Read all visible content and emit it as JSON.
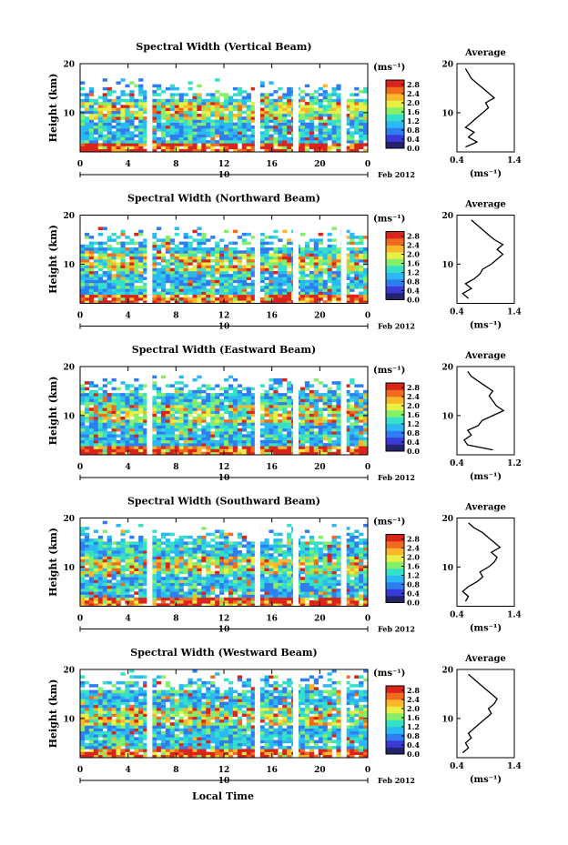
{
  "figure": {
    "date_label": "Feb 2012",
    "day_label": "10",
    "x_axis_title": "Local Time",
    "colorbar_unit": "(ms⁻¹)",
    "avg_title": "Average",
    "avg_unit": "(ms⁻¹)",
    "y_axis_title": "Height (km)",
    "colormap": [
      "#24246e",
      "#3a3ad6",
      "#2f7df0",
      "#2cb8f2",
      "#35e0c8",
      "#86ef6a",
      "#e6f046",
      "#f9b72c",
      "#f06a1f",
      "#d9241c"
    ]
  },
  "chart_data": [
    {
      "type": "heatmap",
      "title": "Spectral Width (Vertical Beam)",
      "xlabel": "Local Time",
      "ylabel": "Height (km)",
      "xlim": [
        0,
        24
      ],
      "ylim": [
        2,
        20
      ],
      "xticks": [
        "0",
        "4",
        "8",
        "12",
        "16",
        "20",
        "0"
      ],
      "yticks": [
        "10",
        "20"
      ],
      "colorbar": {
        "ticks": [
          "0.0",
          "0.4",
          "0.8",
          "1.2",
          "1.6",
          "2.0",
          "2.4",
          "2.8"
        ],
        "range": [
          0,
          3.0
        ]
      },
      "data_gaps_hours": [
        5.8,
        14.8,
        18.0,
        22.0
      ],
      "average": {
        "xlim": [
          0.4,
          1.4
        ],
        "xticks": [
          "0.4",
          "1.4"
        ],
        "heights": [
          3,
          4,
          5,
          6,
          7,
          8,
          9,
          10,
          11,
          12,
          13,
          14,
          15,
          16,
          17,
          18,
          19
        ],
        "values": [
          0.55,
          0.75,
          0.6,
          0.7,
          0.55,
          0.65,
          0.75,
          0.85,
          0.95,
          0.9,
          1.05,
          0.95,
          0.85,
          0.75,
          0.65,
          0.6,
          0.55
        ]
      }
    },
    {
      "type": "heatmap",
      "title": "Spectral Width (Northward Beam)",
      "xlabel": "Local Time",
      "ylabel": "Height (km)",
      "xlim": [
        0,
        24
      ],
      "ylim": [
        2,
        20
      ],
      "xticks": [
        "0",
        "4",
        "8",
        "12",
        "16",
        "20",
        "0"
      ],
      "yticks": [
        "10",
        "20"
      ],
      "colorbar": {
        "ticks": [
          "0.0",
          "0.4",
          "0.8",
          "1.2",
          "1.6",
          "2.0",
          "2.4",
          "2.8"
        ],
        "range": [
          0,
          3.0
        ]
      },
      "data_gaps_hours": [
        5.8,
        14.8,
        18.0,
        22.0
      ],
      "average": {
        "xlim": [
          0.4,
          1.4
        ],
        "xticks": [
          "0.4",
          "1.4"
        ],
        "heights": [
          3,
          4,
          5,
          6,
          7,
          8,
          9,
          10,
          11,
          12,
          13,
          14,
          15,
          16,
          17,
          18,
          19
        ],
        "values": [
          0.6,
          0.5,
          0.65,
          0.55,
          0.7,
          0.8,
          0.85,
          1.0,
          1.1,
          1.2,
          1.1,
          1.2,
          1.05,
          0.95,
          0.85,
          0.75,
          0.65
        ]
      }
    },
    {
      "type": "heatmap",
      "title": "Spectral Width (Eastward Beam)",
      "xlabel": "Local Time",
      "ylabel": "Height (km)",
      "xlim": [
        0,
        24
      ],
      "ylim": [
        2,
        20
      ],
      "xticks": [
        "0",
        "4",
        "8",
        "12",
        "16",
        "20",
        "0"
      ],
      "yticks": [
        "10",
        "20"
      ],
      "colorbar": {
        "ticks": [
          "0.0",
          "0.4",
          "0.8",
          "1.2",
          "1.6",
          "2.0",
          "2.4",
          "2.8"
        ],
        "range": [
          0,
          3.0
        ]
      },
      "data_gaps_hours": [
        5.8,
        14.8,
        18.0,
        22.0
      ],
      "average": {
        "xlim": [
          0.4,
          1.2
        ],
        "xticks": [
          "0.4",
          "1.2"
        ],
        "heights": [
          3,
          4,
          5,
          6,
          7,
          8,
          9,
          10,
          11,
          12,
          13,
          14,
          15,
          16,
          17,
          18,
          19
        ],
        "values": [
          0.9,
          0.55,
          0.5,
          0.6,
          0.55,
          0.7,
          0.75,
          0.9,
          1.05,
          0.95,
          0.9,
          0.85,
          0.9,
          0.8,
          0.7,
          0.6,
          0.55
        ]
      }
    },
    {
      "type": "heatmap",
      "title": "Spectral Width (Southward Beam)",
      "xlabel": "Local Time",
      "ylabel": "Height (km)",
      "xlim": [
        0,
        24
      ],
      "ylim": [
        2,
        20
      ],
      "xticks": [
        "0",
        "4",
        "8",
        "12",
        "16",
        "20",
        "0"
      ],
      "yticks": [
        "10",
        "20"
      ],
      "colorbar": {
        "ticks": [
          "0.0",
          "0.4",
          "0.8",
          "1.2",
          "1.6",
          "2.0",
          "2.4",
          "2.8"
        ],
        "range": [
          0,
          3.0
        ]
      },
      "data_gaps_hours": [
        5.8,
        14.8,
        18.0,
        22.0
      ],
      "average": {
        "xlim": [
          0.4,
          1.4
        ],
        "xticks": [
          "0.4",
          "1.4"
        ],
        "heights": [
          3,
          4,
          5,
          6,
          7,
          8,
          9,
          10,
          11,
          12,
          13,
          14,
          15,
          16,
          17,
          18,
          19
        ],
        "values": [
          0.55,
          0.6,
          0.5,
          0.6,
          0.75,
          0.85,
          0.8,
          0.95,
          1.05,
          1.1,
          1.0,
          1.15,
          1.05,
          0.95,
          0.85,
          0.7,
          0.6
        ]
      }
    },
    {
      "type": "heatmap",
      "title": "Spectral Width (Westward Beam)",
      "xlabel": "Local Time",
      "ylabel": "Height (km)",
      "xlim": [
        0,
        24
      ],
      "ylim": [
        2,
        20
      ],
      "xticks": [
        "0",
        "4",
        "8",
        "12",
        "16",
        "20",
        "0"
      ],
      "yticks": [
        "10",
        "20"
      ],
      "colorbar": {
        "ticks": [
          "0.0",
          "0.4",
          "0.8",
          "1.2",
          "1.6",
          "2.0",
          "2.4",
          "2.8"
        ],
        "range": [
          0,
          3.0
        ]
      },
      "data_gaps_hours": [
        5.8,
        14.8,
        18.0,
        22.0
      ],
      "average": {
        "xlim": [
          0.4,
          1.4
        ],
        "xticks": [
          "0.4",
          "1.4"
        ],
        "heights": [
          3,
          4,
          5,
          6,
          7,
          8,
          9,
          10,
          11,
          12,
          13,
          14,
          15,
          16,
          17,
          18,
          19
        ],
        "values": [
          0.5,
          0.6,
          0.55,
          0.65,
          0.6,
          0.7,
          0.8,
          0.9,
          1.0,
          0.95,
          1.05,
          1.1,
          1.0,
          0.9,
          0.8,
          0.7,
          0.6
        ]
      }
    }
  ]
}
